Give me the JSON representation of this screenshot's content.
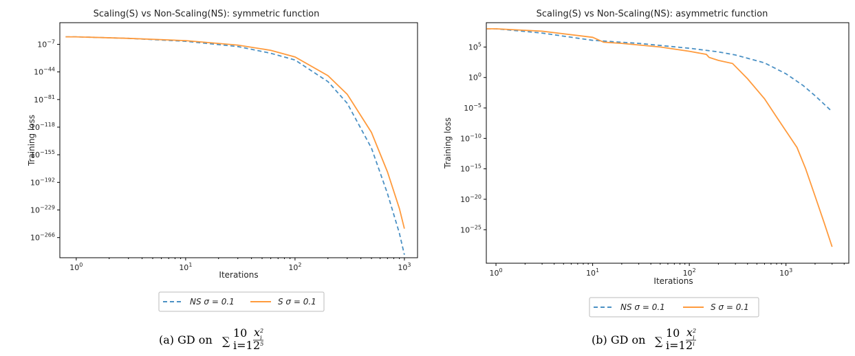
{
  "colors": {
    "ns": "#4a90c4",
    "s": "#ff9a3c"
  },
  "chart_data": [
    {
      "type": "line",
      "title": "Scaling(S) vs Non-Scaling(NS): symmetric function",
      "xlabel": "Iterations",
      "ylabel": "Training loss",
      "xscale": "log",
      "yscale": "log",
      "xlim_exp": [
        -0.15,
        3.12
      ],
      "ylim_exp": [
        22,
        -293
      ],
      "xticks": [
        {
          "exp": 0,
          "label": "10^0"
        },
        {
          "exp": 1,
          "label": "10^1"
        },
        {
          "exp": 2,
          "label": "10^2"
        },
        {
          "exp": 3,
          "label": "10^3"
        }
      ],
      "yticks": [
        {
          "exp": -7,
          "label": "10^-7"
        },
        {
          "exp": -44,
          "label": "10^-44"
        },
        {
          "exp": -81,
          "label": "10^-81"
        },
        {
          "exp": -118,
          "label": "10^-118"
        },
        {
          "exp": -155,
          "label": "10^-155"
        },
        {
          "exp": -192,
          "label": "10^-192"
        },
        {
          "exp": -229,
          "label": "10^-229"
        },
        {
          "exp": -266,
          "label": "10^-266"
        }
      ],
      "series": [
        {
          "name": "NS σ = 0.1",
          "style": "dashed",
          "x": [
            0.8,
            1,
            3,
            10,
            30,
            60,
            100,
            200,
            300,
            500,
            700,
            900,
            1000
          ],
          "log10_y": [
            3,
            3,
            1,
            -3,
            -10,
            -19,
            -28,
            -57,
            -86,
            -146,
            -207,
            -260,
            -289
          ]
        },
        {
          "name": "S σ = 0.1",
          "style": "solid",
          "x": [
            0.8,
            1,
            3,
            10,
            30,
            60,
            100,
            200,
            300,
            500,
            700,
            900,
            1000
          ],
          "log10_y": [
            3,
            3,
            1,
            -2,
            -8,
            -15,
            -24,
            -49,
            -74,
            -125,
            -178,
            -227,
            -254
          ]
        }
      ],
      "legend": {
        "position": "below-center",
        "entries": [
          "NS σ = 0.1",
          "S σ = 0.1"
        ]
      }
    },
    {
      "type": "line",
      "title": "Scaling(S) vs Non-Scaling(NS): asymmetric function",
      "xlabel": "Iterations",
      "ylabel": "Training loss",
      "xscale": "log",
      "yscale": "log",
      "xlim_exp": [
        -0.1,
        3.65
      ],
      "ylim_exp": [
        9,
        -30.5
      ],
      "xticks": [
        {
          "exp": 0,
          "label": "10^0"
        },
        {
          "exp": 1,
          "label": "10^1"
        },
        {
          "exp": 2,
          "label": "10^2"
        },
        {
          "exp": 3,
          "label": "10^3"
        }
      ],
      "yticks": [
        {
          "exp": 5,
          "label": "10^5"
        },
        {
          "exp": 0,
          "label": "10^0"
        },
        {
          "exp": -5,
          "label": "10^-5"
        },
        {
          "exp": -10,
          "label": "10^-10"
        },
        {
          "exp": -15,
          "label": "10^-15"
        },
        {
          "exp": -20,
          "label": "10^-20"
        },
        {
          "exp": -25,
          "label": "10^-25"
        }
      ],
      "series": [
        {
          "name": "NS σ = 0.1",
          "style": "dashed",
          "x": [
            0.8,
            1,
            3,
            10,
            30,
            100,
            200,
            300,
            600,
            1000,
            1500,
            2000,
            3000
          ],
          "log10_y": [
            8,
            8,
            7.3,
            6.1,
            5.6,
            4.8,
            4.2,
            3.7,
            2.4,
            0.6,
            -1.3,
            -3.0,
            -5.6
          ]
        },
        {
          "name": "S σ = 0.1",
          "style": "solid",
          "x": [
            0.8,
            1,
            3,
            10,
            13,
            20,
            50,
            100,
            150,
            160,
            200,
            280,
            400,
            600,
            800,
            1000,
            1300,
            1600,
            2000,
            2500,
            3000
          ],
          "log10_y": [
            8,
            8,
            7.6,
            6.6,
            5.8,
            5.6,
            5.0,
            4.3,
            3.8,
            3.3,
            2.8,
            2.3,
            -0.2,
            -3.5,
            -6.5,
            -8.8,
            -11.5,
            -15.0,
            -19.5,
            -24.0,
            -27.8
          ]
        }
      ],
      "legend": {
        "position": "below-center",
        "entries": [
          "NS σ = 0.1",
          "S σ = 0.1"
        ]
      }
    }
  ],
  "captions": [
    {
      "prefix": "(a)  GD on ",
      "denominator_exp": "5"
    },
    {
      "prefix": "(b)  GD on ",
      "denominator_exp": "i"
    }
  ]
}
